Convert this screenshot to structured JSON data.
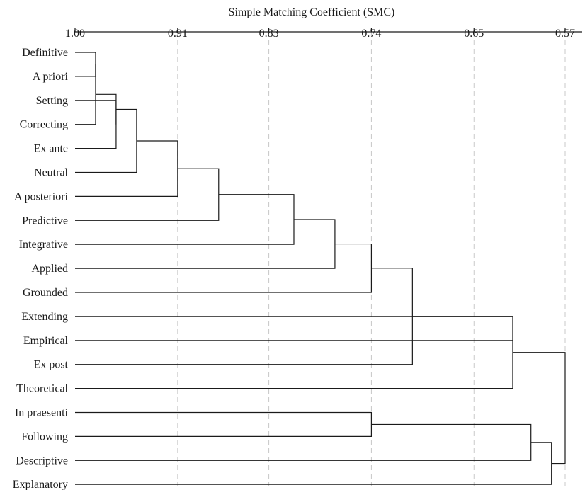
{
  "chart_data": {
    "type": "dendrogram",
    "title": "Simple Matching Coefficient (SMC)",
    "xlabel": "Simple Matching Coefficient (SMC)",
    "ylabel": "",
    "x_range": [
      1.0,
      0.57
    ],
    "tick_values": [
      1.0,
      0.91,
      0.83,
      0.74,
      0.65,
      0.57
    ],
    "tick_labels": [
      "1.00",
      "0.91",
      "0.83",
      "0.74",
      "0.65",
      "0.57"
    ],
    "grid": "vertical dashed at ticks",
    "leaves": [
      "Definitive",
      "A priori",
      "Setting",
      "Correcting",
      "Ex ante",
      "Neutral",
      "A posteriori",
      "Predictive",
      "Integrative",
      "Applied",
      "Grounded",
      "Extending",
      "Empirical",
      "Ex post",
      "Theoretical",
      "In praesenti",
      "Following",
      "Descriptive",
      "Explanatory"
    ],
    "merges": [
      {
        "id": "c1",
        "left": "Definitive",
        "right": "A priori",
        "similarity": 0.982
      },
      {
        "id": "c2",
        "left": "c1",
        "right": "Correcting",
        "similarity": 0.982
      },
      {
        "id": "c3",
        "left": "Setting",
        "right": "Ex ante",
        "similarity": 0.964
      },
      {
        "id": "c4",
        "left": "c2",
        "right": "c3",
        "similarity": 0.964
      },
      {
        "id": "c5",
        "left": "c4",
        "right": "Neutral",
        "similarity": 0.946
      },
      {
        "id": "c6",
        "left": "c5",
        "right": "A posteriori",
        "similarity": 0.91
      },
      {
        "id": "c7",
        "left": "c6",
        "right": "Predictive",
        "similarity": 0.874
      },
      {
        "id": "c8",
        "left": "c7",
        "right": "Integrative",
        "similarity": 0.808
      },
      {
        "id": "c9",
        "left": "c8",
        "right": "Applied",
        "similarity": 0.772
      },
      {
        "id": "c10",
        "left": "c9",
        "right": "Grounded",
        "similarity": 0.74
      },
      {
        "id": "c11",
        "left": "c10",
        "right": "Ex post",
        "similarity": 0.704
      },
      {
        "id": "c12",
        "left": "c11",
        "right": "Theoretical",
        "similarity": 0.616
      },
      {
        "id": "c13",
        "left": "In praesenti",
        "right": "Following",
        "similarity": 0.74
      },
      {
        "id": "c14",
        "left": "c13",
        "right": "Descriptive",
        "similarity": 0.6
      },
      {
        "id": "c15",
        "left": "c14",
        "right": "Explanatory",
        "similarity": 0.582
      },
      {
        "id": "c16",
        "left": "c12",
        "right": "c15",
        "similarity": 0.57
      }
    ],
    "extra_branches": [
      {
        "leaf": "Extending",
        "similarity": 0.704
      },
      {
        "leaf": "Empirical",
        "similarity": 0.616
      }
    ],
    "colors": {
      "links": "#1a1a1a",
      "grid": "#c8c8c8",
      "text": "#1a1a1a"
    }
  }
}
